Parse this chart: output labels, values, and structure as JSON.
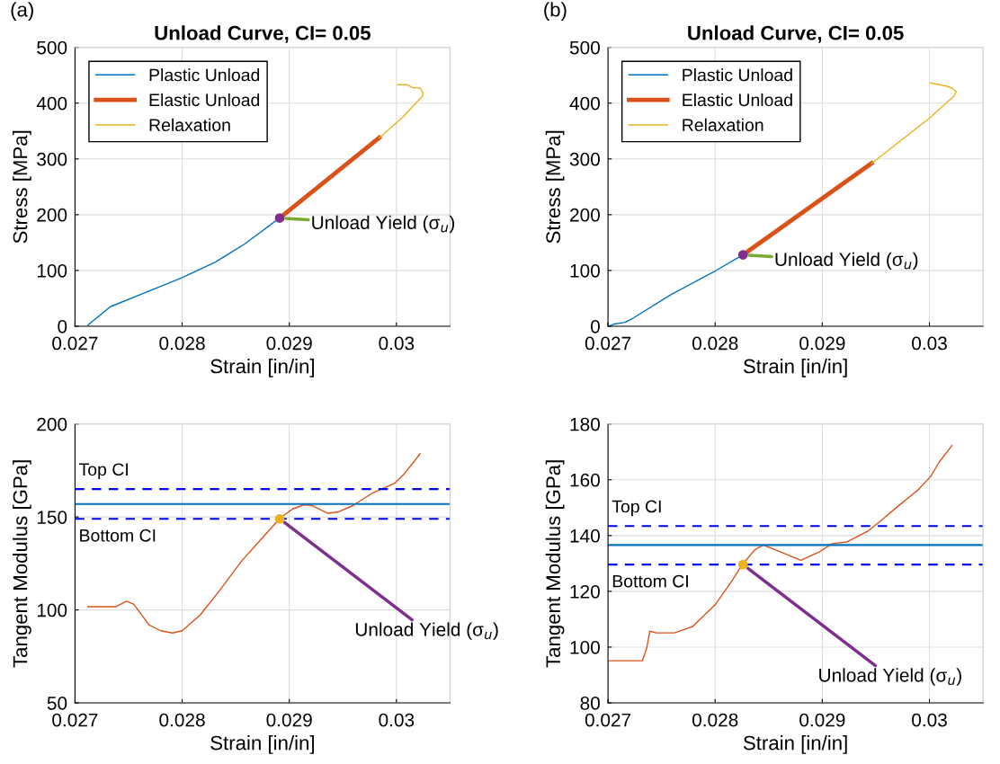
{
  "chart_data": [
    {
      "type": "line",
      "title": "Unload Curve, CI= 0.05",
      "xlabel": "Strain [in/in]",
      "ylabel": "Stress [MPa]",
      "xlim": [
        0.027,
        0.0305
      ],
      "ylim": [
        0,
        500
      ],
      "xticks": [
        0.027,
        0.028,
        0.029,
        0.03
      ],
      "yticks": [
        0,
        100,
        200,
        300,
        400,
        500
      ],
      "grid": true,
      "legend": "top left",
      "annotations": [
        "(a)",
        "Unload Yield (σ$_{u}$)"
      ],
      "series": [
        {
          "name": "Plastic Unload",
          "color": "#0072bd",
          "x": [
            0.02712,
            0.02733,
            0.02769,
            0.028,
            0.02831,
            0.02858,
            0.02891
          ],
          "values": [
            2,
            35,
            63,
            87,
            115,
            147,
            194
          ]
        },
        {
          "name": "Elastic Unload",
          "color": "#d95319",
          "x": [
            0.02891,
            0.02984
          ],
          "values": [
            194,
            338
          ]
        },
        {
          "name": "Relaxation",
          "color": "#edb120",
          "x": [
            0.02984,
            0.03006,
            0.03024,
            0.03025,
            0.03022,
            0.03015,
            0.0301,
            0.03001
          ],
          "values": [
            338,
            375,
            412,
            418,
            427,
            428,
            433,
            433
          ]
        },
        {
          "type": "scatter",
          "color": "#7e2f8e",
          "x": [
            0.02891
          ],
          "values": [
            194
          ]
        }
      ]
    },
    {
      "type": "line",
      "title": "Unload Curve, CI= 0.05",
      "xlabel": "Strain [in/in]",
      "ylabel": "Stress [MPa]",
      "xlim": [
        0.027,
        0.0305
      ],
      "ylim": [
        0,
        500
      ],
      "xticks": [
        0.027,
        0.028,
        0.029,
        0.03
      ],
      "yticks": [
        0,
        100,
        200,
        300,
        400,
        500
      ],
      "grid": true,
      "legend": "top left",
      "annotations": [
        "(b)",
        "Unload Yield (σ$_{u}$)"
      ],
      "series": [
        {
          "name": "Plastic Unload",
          "color": "#0072bd",
          "x": [
            0.02701,
            0.02706,
            0.02716,
            0.02723,
            0.02759,
            0.028,
            0.02826
          ],
          "values": [
            0,
            4,
            7,
            14,
            57,
            99,
            128
          ]
        },
        {
          "name": "Elastic Unload",
          "color": "#d95319",
          "x": [
            0.02826,
            0.02946
          ],
          "values": [
            128,
            292
          ]
        },
        {
          "name": "Relaxation",
          "color": "#edb120",
          "x": [
            0.02946,
            0.03,
            0.03023,
            0.03025,
            0.03021,
            0.03015,
            0.03001
          ],
          "values": [
            292,
            373,
            413,
            421,
            427,
            431,
            436
          ]
        },
        {
          "type": "scatter",
          "color": "#7e2f8e",
          "x": [
            0.02826
          ],
          "values": [
            128
          ]
        }
      ]
    },
    {
      "type": "line",
      "xlabel": "Strain [in/in]",
      "ylabel": "Tangent Modulus [GPa]",
      "xlim": [
        0.027,
        0.0305
      ],
      "ylim": [
        50,
        200
      ],
      "xticks": [
        0.027,
        0.028,
        0.029,
        0.03
      ],
      "yticks": [
        50,
        100,
        150,
        200
      ],
      "grid": true,
      "annotations": [
        "Unload Yield (σ$_{u}$)"
      ],
      "ref_lines": [
        {
          "axis": "y",
          "value": 165,
          "label": "Top CI",
          "color": "#0000ff",
          "line_style": "dashed"
        },
        {
          "axis": "y",
          "value": 157,
          "color": "#0072bd",
          "line_style": "solid"
        },
        {
          "axis": "y",
          "value": 149,
          "label": "Bottom CI",
          "color": "#0000ff",
          "line_style": "dashed"
        }
      ],
      "series": [
        {
          "color": "#d95319",
          "x": [
            0.02712,
            0.02738,
            0.02748,
            0.02755,
            0.02769,
            0.0278,
            0.02791,
            0.028,
            0.02817,
            0.02836,
            0.02856,
            0.02875,
            0.02891,
            0.02903,
            0.02914,
            0.02922,
            0.02936,
            0.02945,
            0.02959,
            0.02978,
            0.02998,
            0.03006,
            0.03017,
            0.03022
          ],
          "values": [
            101.7,
            101.7,
            104.7,
            103,
            92,
            88.8,
            87.6,
            88.8,
            97.4,
            111.2,
            126.7,
            138.8,
            149.1,
            154.3,
            156.6,
            156,
            152,
            152.6,
            156,
            163,
            168,
            172.4,
            180.2,
            184
          ]
        },
        {
          "type": "scatter",
          "color": "#edb120",
          "x": [
            0.02891
          ],
          "values": [
            149
          ]
        }
      ]
    },
    {
      "type": "line",
      "xlabel": "Strain [in/in]",
      "ylabel": "Tangent Modulus [GPa]",
      "xlim": [
        0.027,
        0.0305
      ],
      "ylim": [
        80,
        180
      ],
      "xticks": [
        0.027,
        0.028,
        0.029,
        0.03
      ],
      "yticks": [
        80,
        100,
        120,
        140,
        160,
        180
      ],
      "grid": true,
      "annotations": [
        "Unload Yield (σ$_{u}$)"
      ],
      "ref_lines": [
        {
          "axis": "y",
          "value": 143.4,
          "label": "Top CI",
          "color": "#0000ff",
          "line_style": "dashed"
        },
        {
          "axis": "y",
          "value": 136.6,
          "color": "#0072bd",
          "line_style": "solid"
        },
        {
          "axis": "y",
          "value": 129.6,
          "label": "Bottom CI",
          "color": "#0000ff",
          "line_style": "dashed"
        }
      ],
      "series": [
        {
          "color": "#d95319",
          "x": [
            0.02701,
            0.02732,
            0.02736,
            0.02739,
            0.02745,
            0.02762,
            0.02779,
            0.028,
            0.02815,
            0.02825,
            0.02837,
            0.02845,
            0.02856,
            0.0288,
            0.02898,
            0.02909,
            0.02923,
            0.02943,
            0.02954,
            0.0297,
            0.0299,
            0.03001,
            0.03009,
            0.03021
          ],
          "values": [
            95.1,
            95.1,
            99.4,
            105.7,
            105.1,
            105.1,
            107.4,
            115.2,
            123.4,
            129.4,
            134.9,
            136.6,
            134.9,
            131.1,
            134.3,
            137.1,
            137.7,
            141.7,
            145.1,
            150.3,
            156.6,
            161.1,
            166.3,
            172.3
          ]
        },
        {
          "type": "scatter",
          "color": "#edb120",
          "x": [
            0.02826
          ],
          "values": [
            129.6
          ]
        }
      ]
    }
  ]
}
